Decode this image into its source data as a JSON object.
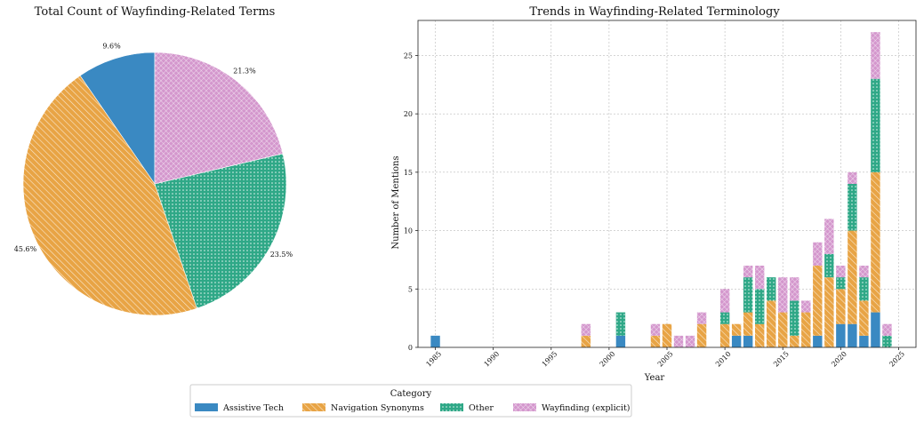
{
  "colors": {
    "Assistive Tech": "#3a89c2",
    "Navigation Synonyms": "#e8a445",
    "Other": "#2fa887",
    "Wayfinding (explicit)": "#d497cd"
  },
  "legend": {
    "title": "Category",
    "items": [
      "Assistive Tech",
      "Navigation Synonyms",
      "Other",
      "Wayfinding (explicit)"
    ]
  },
  "chart_data": [
    {
      "type": "pie",
      "title": "Total Count of Wayfinding-Related Terms",
      "labels": [
        "Assistive Tech",
        "Navigation Synonyms",
        "Other",
        "Wayfinding (explicit)"
      ],
      "values": [
        9.6,
        45.6,
        23.5,
        21.3
      ],
      "value_labels": [
        "9.6%",
        "45.6%",
        "23.5%",
        "21.3%"
      ],
      "start_angle_deg": 90,
      "direction": "counterclockwise"
    },
    {
      "type": "bar",
      "stacked": true,
      "title": "Trends in Wayfinding-Related Terminology",
      "xlabel": "Year",
      "ylabel": "Number of Mentions",
      "xlim": [
        1983.5,
        2026.5
      ],
      "ylim": [
        0,
        28
      ],
      "xticks": [
        1985,
        1990,
        1995,
        2000,
        2005,
        2010,
        2015,
        2020,
        2025
      ],
      "yticks": [
        0,
        5,
        10,
        15,
        20,
        25
      ],
      "grid": true,
      "x": [
        1985,
        1998,
        2001,
        2004,
        2005,
        2006,
        2007,
        2008,
        2010,
        2011,
        2012,
        2013,
        2014,
        2015,
        2016,
        2017,
        2018,
        2019,
        2020,
        2021,
        2022,
        2023,
        2024
      ],
      "series": [
        {
          "name": "Assistive Tech",
          "values": [
            1,
            0,
            1,
            0,
            0,
            0,
            0,
            0,
            0,
            1,
            1,
            0,
            0,
            0,
            0,
            0,
            1,
            0,
            2,
            2,
            1,
            3,
            0
          ]
        },
        {
          "name": "Navigation Synonyms",
          "values": [
            0,
            1,
            0,
            1,
            2,
            0,
            0,
            2,
            2,
            1,
            2,
            2,
            4,
            3,
            1,
            3,
            6,
            6,
            3,
            8,
            3,
            12,
            0
          ]
        },
        {
          "name": "Other",
          "values": [
            0,
            0,
            2,
            0,
            0,
            0,
            0,
            0,
            1,
            0,
            3,
            3,
            2,
            0,
            3,
            0,
            0,
            2,
            1,
            4,
            2,
            8,
            1
          ]
        },
        {
          "name": "Wayfinding (explicit)",
          "values": [
            0,
            1,
            0,
            1,
            0,
            1,
            1,
            1,
            2,
            0,
            1,
            2,
            0,
            3,
            2,
            1,
            2,
            3,
            1,
            1,
            1,
            4,
            1
          ]
        }
      ]
    }
  ]
}
